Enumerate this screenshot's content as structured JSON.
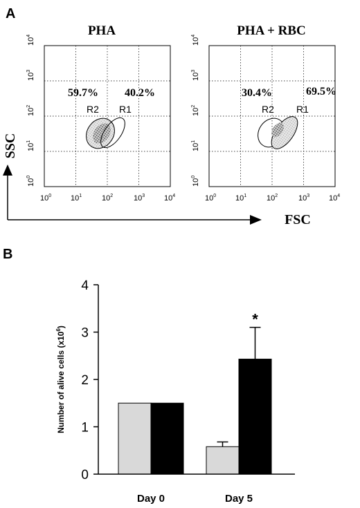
{
  "panel_a": {
    "letter": "A",
    "x_axis_label": "FSC",
    "y_axis_label": "SSC",
    "tick_base": "10",
    "tick_exponents": [
      "0",
      "1",
      "2",
      "3",
      "4"
    ],
    "plots": [
      {
        "title": "PHA",
        "r2_percent": "59.7%",
        "r1_percent": "40.2%",
        "r2_label": "R2",
        "r1_label": "R1"
      },
      {
        "title": "PHA + RBC",
        "r2_percent": "30.4%",
        "r1_percent": "69.5%",
        "r2_label": "R2",
        "r1_label": "R1"
      }
    ]
  },
  "panel_b": {
    "letter": "B",
    "ylabel_main": "Number of alive cells (x10",
    "ylabel_exp": "6",
    "ylabel_close": ")",
    "significance_marker": "*"
  },
  "chart_data": [
    {
      "type": "scatter",
      "title": "PHA",
      "xlabel": "FSC",
      "ylabel": "SSC",
      "x_scale": "log",
      "y_scale": "log",
      "xlim": [
        1,
        10000
      ],
      "ylim": [
        1,
        10000
      ],
      "gates": [
        {
          "name": "R2",
          "percent": 59.7
        },
        {
          "name": "R1",
          "percent": 40.2
        }
      ]
    },
    {
      "type": "scatter",
      "title": "PHA + RBC",
      "xlabel": "FSC",
      "ylabel": "SSC",
      "x_scale": "log",
      "y_scale": "log",
      "xlim": [
        1,
        10000
      ],
      "ylim": [
        1,
        10000
      ],
      "gates": [
        {
          "name": "R2",
          "percent": 30.4
        },
        {
          "name": "R1",
          "percent": 69.5
        }
      ]
    },
    {
      "type": "bar",
      "ylabel": "Number of alive cells (x10^6)",
      "categories": [
        "Day 0",
        "Day 5"
      ],
      "ylim": [
        0,
        4
      ],
      "yticks": [
        0,
        1,
        2,
        3,
        4
      ],
      "series": [
        {
          "values": [
            1.5,
            0.58
          ],
          "errors": [
            0,
            0.1
          ],
          "color": "#d9d9d9"
        },
        {
          "values": [
            1.5,
            2.43
          ],
          "errors": [
            0,
            0.67
          ],
          "color": "#000000"
        }
      ],
      "significance": [
        {
          "category": "Day 5",
          "series_index": 1,
          "marker": "*"
        }
      ]
    }
  ]
}
